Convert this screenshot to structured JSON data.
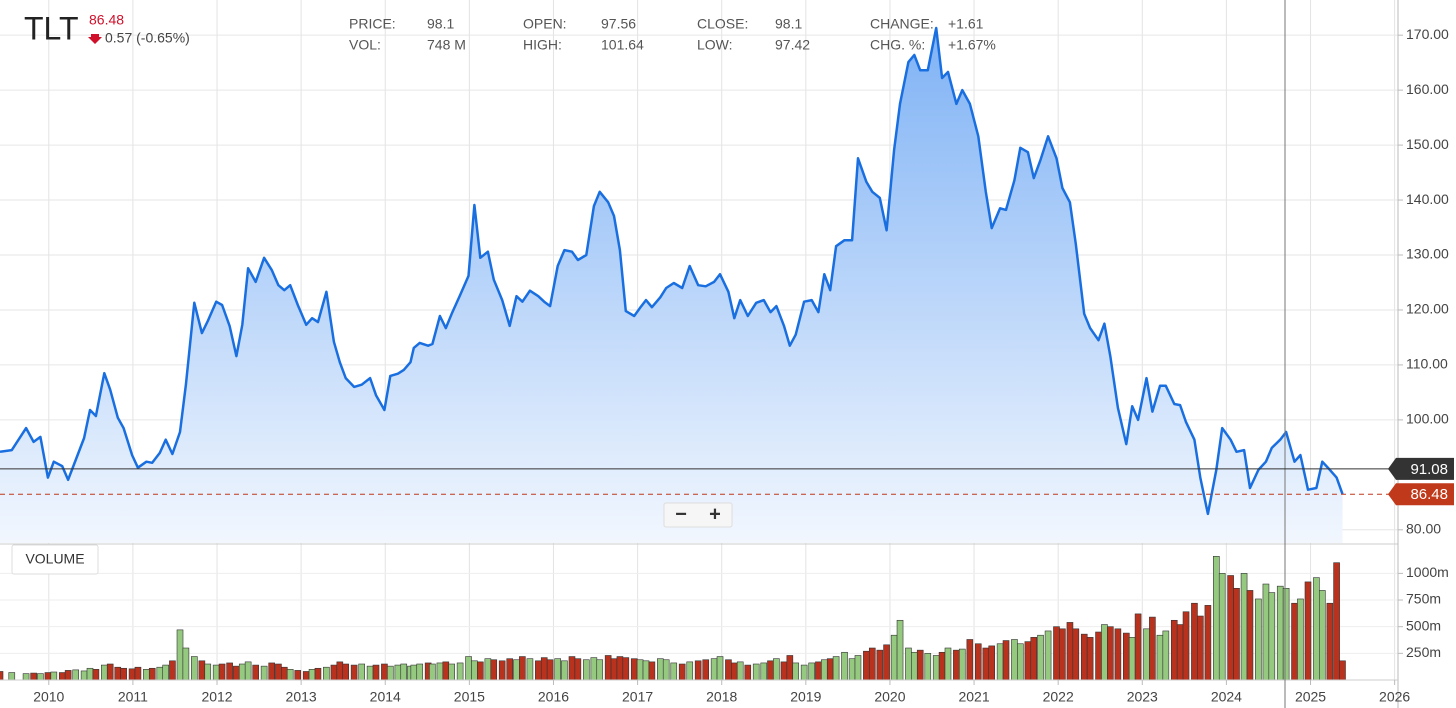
{
  "header": {
    "ticker": "TLT",
    "last": "86.48",
    "change": "0.57 (-0.65%)",
    "stats": [
      {
        "label": "PRICE:",
        "value": "98.1"
      },
      {
        "label": "OPEN:",
        "value": "97.56"
      },
      {
        "label": "CLOSE:",
        "value": "98.1"
      },
      {
        "label": "CHANGE:",
        "value": "+1.61"
      },
      {
        "label": "VOL:",
        "value": "748 M"
      },
      {
        "label": "HIGH:",
        "value": "101.64"
      },
      {
        "label": "LOW:",
        "value": "97.42"
      },
      {
        "label": "CHG. %:",
        "value": "+1.67%"
      }
    ],
    "zoom_out": "−",
    "zoom_in": "+"
  },
  "chart_data": {
    "type": "area",
    "color": "#1a6fe0",
    "fill_top": "#7fb2f5",
    "fill_bottom": "#f2f7fe",
    "grid": true,
    "xlim": [
      2009.42,
      2026.04
    ],
    "xticks": [
      2010,
      2011,
      2012,
      2013,
      2014,
      2015,
      2016,
      2017,
      2018,
      2019,
      2020,
      2021,
      2022,
      2023,
      2024,
      2025,
      2026
    ],
    "ylim": [
      77.6,
      176.4
    ],
    "yticks": [
      {
        "value": 80,
        "label": "80.00"
      },
      {
        "value": 100,
        "label": "100.00"
      },
      {
        "value": 110,
        "label": "110.00"
      },
      {
        "value": 120,
        "label": "120.00"
      },
      {
        "value": 130,
        "label": "130.00"
      },
      {
        "value": 140,
        "label": "140.00"
      },
      {
        "value": 150,
        "label": "150.00"
      },
      {
        "value": 160,
        "label": "160.00"
      },
      {
        "value": 170,
        "label": "170.00"
      }
    ],
    "reference_line": {
      "value": 91.08,
      "color": "#333333"
    },
    "last_line": {
      "value": 86.48,
      "color": "#c0391b"
    },
    "x": [
      2009.42,
      2009.56,
      2009.73,
      2009.82,
      2009.9,
      2009.99,
      2010.06,
      2010.16,
      2010.23,
      2010.32,
      2010.42,
      2010.49,
      2010.56,
      2010.66,
      2010.73,
      2010.82,
      2010.89,
      2010.99,
      2011.06,
      2011.16,
      2011.23,
      2011.32,
      2011.39,
      2011.47,
      2011.56,
      2011.63,
      2011.73,
      2011.82,
      2011.89,
      2011.99,
      2012.06,
      2012.15,
      2012.23,
      2012.3,
      2012.37,
      2012.46,
      2012.56,
      2012.65,
      2012.73,
      2012.8,
      2012.87,
      2012.96,
      2013.06,
      2013.13,
      2013.2,
      2013.3,
      2013.39,
      2013.46,
      2013.53,
      2013.63,
      2013.72,
      2013.82,
      2013.89,
      2013.99,
      2014.06,
      2014.15,
      2014.22,
      2014.3,
      2014.34,
      2014.41,
      2014.51,
      2014.56,
      2014.65,
      2014.72,
      2014.79,
      2014.89,
      2014.99,
      2015.06,
      2015.13,
      2015.22,
      2015.29,
      2015.39,
      2015.48,
      2015.56,
      2015.63,
      2015.72,
      2015.82,
      2015.89,
      2015.96,
      2016.05,
      2016.13,
      2016.22,
      2016.29,
      2016.39,
      2016.48,
      2016.55,
      2016.65,
      2016.72,
      2016.79,
      2016.86,
      2016.96,
      2017.03,
      2017.1,
      2017.17,
      2017.27,
      2017.34,
      2017.43,
      2017.53,
      2017.62,
      2017.72,
      2017.81,
      2017.91,
      2017.98,
      2018.08,
      2018.15,
      2018.22,
      2018.31,
      2018.41,
      2018.5,
      2018.58,
      2018.65,
      2018.74,
      2018.81,
      2018.88,
      2018.98,
      2019.07,
      2019.15,
      2019.22,
      2019.29,
      2019.36,
      2019.46,
      2019.55,
      2019.62,
      2019.72,
      2019.79,
      2019.88,
      2019.96,
      2020.05,
      2020.12,
      2020.22,
      2020.29,
      2020.36,
      2020.45,
      2020.55,
      2020.62,
      2020.69,
      2020.79,
      2020.86,
      2020.95,
      2021.05,
      2021.14,
      2021.21,
      2021.31,
      2021.38,
      2021.48,
      2021.55,
      2021.64,
      2021.71,
      2021.79,
      2021.88,
      2021.98,
      2022.05,
      2022.14,
      2022.21,
      2022.31,
      2022.38,
      2022.48,
      2022.55,
      2022.62,
      2022.71,
      2022.81,
      2022.88,
      2022.95,
      2023.05,
      2023.12,
      2023.21,
      2023.28,
      2023.38,
      2023.45,
      2023.52,
      2023.62,
      2023.69,
      2023.78,
      2023.88,
      2023.95,
      2024.05,
      2024.12,
      2024.21,
      2024.28,
      2024.38,
      2024.47,
      2024.54,
      2024.64,
      2024.71,
      2024.81,
      2024.88,
      2024.97,
      2025.07,
      2025.14,
      2025.23,
      2025.31,
      2025.38
    ],
    "values": [
      94.2,
      94.5,
      98.5,
      96,
      96.9,
      89.5,
      92.4,
      91.6,
      89.1,
      92.7,
      96.7,
      101.8,
      100.7,
      108.5,
      105.5,
      100.4,
      98.5,
      93.6,
      91.3,
      92.4,
      92.2,
      94,
      96.4,
      93.8,
      97.8,
      106.4,
      121.3,
      115.8,
      118,
      121.5,
      120.9,
      117.1,
      111.6,
      117.3,
      127.6,
      125.1,
      129.5,
      127.3,
      124.5,
      123.6,
      124.5,
      120.9,
      117.3,
      118.5,
      117.8,
      123.3,
      114.2,
      110.5,
      107.6,
      106,
      106.4,
      107.6,
      104.5,
      101.8,
      108,
      108.4,
      109.1,
      110.5,
      113.1,
      114,
      113.5,
      113.8,
      118.9,
      116.7,
      119.3,
      122.7,
      126.2,
      139.1,
      129.5,
      130.6,
      125.5,
      121.8,
      117.1,
      122.5,
      121.5,
      123.5,
      122.5,
      121.5,
      120.7,
      128,
      130.9,
      130.6,
      129.1,
      130,
      138.9,
      141.5,
      139.6,
      137.1,
      130.9,
      119.8,
      118.9,
      120.4,
      121.8,
      120.5,
      122.3,
      124,
      124.9,
      124,
      128,
      124.5,
      124.3,
      125.1,
      126.5,
      123.3,
      118.5,
      121.8,
      118.9,
      121.3,
      121.8,
      119.6,
      120.7,
      117.1,
      113.5,
      115.5,
      121.5,
      121.8,
      119.6,
      126.5,
      123.6,
      131.6,
      132.7,
      132.7,
      147.6,
      143.3,
      141.5,
      140.4,
      134.5,
      149.1,
      157.5,
      165.1,
      166.4,
      163.6,
      163.6,
      171.3,
      162.2,
      163.3,
      157.5,
      160,
      157.5,
      151.6,
      141.5,
      134.9,
      138.5,
      138.2,
      143.6,
      149.5,
      148.7,
      144,
      147.3,
      151.6,
      147.6,
      142.2,
      139.6,
      132,
      119.3,
      116.7,
      114.5,
      117.5,
      111.6,
      102.2,
      95.6,
      102.5,
      100,
      107.6,
      101.5,
      106.2,
      106.2,
      102.9,
      102.7,
      99.6,
      96.4,
      89.5,
      82.9,
      90.9,
      98.5,
      96.4,
      94.2,
      94.5,
      87.6,
      90.9,
      92.4,
      94.9,
      96.4,
      97.8,
      92.4,
      93.6,
      87.3,
      87.6,
      92.4,
      90.9,
      89.5,
      86.5
    ],
    "volume": {
      "type": "bar",
      "label": "VOLUME",
      "up_color": "#95c97f",
      "down_color": "#b8321e",
      "ylim": [
        0,
        1266
      ],
      "yticks": [
        {
          "value": 250,
          "label": "250m"
        },
        {
          "value": 500,
          "label": "500m"
        },
        {
          "value": 750,
          "label": "750m"
        },
        {
          "value": 1000,
          "label": "1000m"
        }
      ],
      "values": [
        80,
        70,
        60,
        65,
        60,
        70,
        75,
        70,
        90,
        95,
        85,
        110,
        100,
        140,
        150,
        120,
        110,
        105,
        120,
        100,
        110,
        120,
        140,
        180,
        470,
        300,
        220,
        180,
        150,
        140,
        150,
        160,
        130,
        150,
        170,
        140,
        130,
        160,
        150,
        120,
        100,
        90,
        80,
        100,
        110,
        120,
        140,
        170,
        150,
        140,
        150,
        130,
        140,
        150,
        130,
        140,
        150,
        130,
        140,
        150,
        160,
        150,
        160,
        170,
        150,
        160,
        220,
        180,
        170,
        200,
        190,
        180,
        200,
        190,
        220,
        200,
        180,
        210,
        190,
        200,
        180,
        220,
        200,
        190,
        210,
        190,
        230,
        200,
        220,
        210,
        200,
        190,
        180,
        170,
        200,
        190,
        160,
        150,
        170,
        180,
        190,
        200,
        220,
        190,
        160,
        170,
        140,
        150,
        160,
        180,
        200,
        170,
        230,
        160,
        140,
        160,
        170,
        190,
        200,
        220,
        260,
        200,
        230,
        270,
        300,
        280,
        330,
        420,
        560,
        300,
        260,
        280,
        250,
        230,
        260,
        300,
        280,
        290,
        380,
        340,
        300,
        320,
        340,
        370,
        380,
        340,
        360,
        400,
        420,
        460,
        500,
        480,
        540,
        480,
        430,
        400,
        450,
        520,
        500,
        480,
        440,
        400,
        620,
        480,
        590,
        420,
        460,
        560,
        520,
        640,
        720,
        600,
        700,
        1160,
        1000,
        980,
        860,
        1000,
        840,
        760,
        900,
        820,
        880,
        860,
        720,
        760,
        920,
        960,
        840,
        720,
        1100,
        180
      ]
    }
  }
}
